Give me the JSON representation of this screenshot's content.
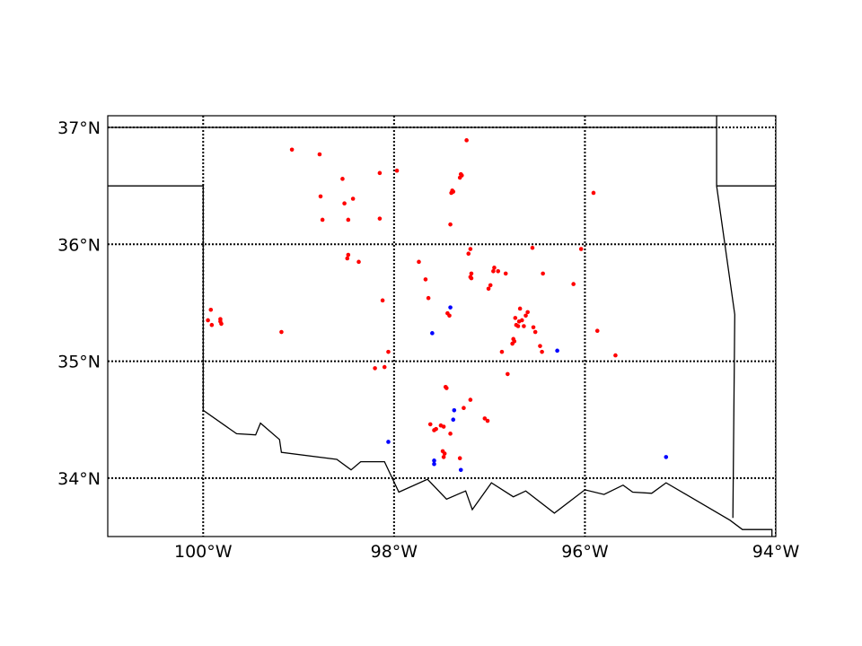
{
  "map": {
    "projection": "lat-lon",
    "lon_range": [
      -101,
      -94
    ],
    "lat_range": [
      33.5,
      37.1
    ],
    "gridlines": "dotted",
    "lon_ticks": [
      {
        "value": -100,
        "label": "100°W"
      },
      {
        "value": -98,
        "label": "98°W"
      },
      {
        "value": -96,
        "label": "96°W"
      },
      {
        "value": -94,
        "label": "94°W"
      }
    ],
    "lat_ticks": [
      {
        "value": 37,
        "label": "37°N"
      },
      {
        "value": 36,
        "label": "36°N"
      },
      {
        "value": 35,
        "label": "35°N"
      },
      {
        "value": 34,
        "label": "34°N"
      }
    ],
    "colors": {
      "boundary": "#000000",
      "red_points": "#ff0000",
      "blue_points": "#0000ff"
    },
    "boundaries": [
      [
        [
          -101,
          36.5
        ],
        [
          -100,
          36.5
        ],
        [
          -100,
          34.58
        ],
        [
          -99.65,
          34.38
        ],
        [
          -99.45,
          34.37
        ],
        [
          -99.4,
          34.47
        ],
        [
          -99.2,
          34.33
        ],
        [
          -99.18,
          34.22
        ],
        [
          -98.6,
          34.16
        ],
        [
          -98.45,
          34.07
        ],
        [
          -98.35,
          34.14
        ],
        [
          -98.1,
          34.14
        ],
        [
          -97.95,
          33.88
        ],
        [
          -97.65,
          33.99
        ],
        [
          -97.45,
          33.82
        ],
        [
          -97.25,
          33.89
        ],
        [
          -97.18,
          33.73
        ],
        [
          -96.98,
          33.96
        ],
        [
          -96.75,
          33.84
        ],
        [
          -96.62,
          33.89
        ],
        [
          -96.32,
          33.7
        ],
        [
          -96.0,
          33.9
        ],
        [
          -95.8,
          33.86
        ],
        [
          -95.6,
          33.94
        ],
        [
          -95.5,
          33.88
        ],
        [
          -95.3,
          33.87
        ],
        [
          -95.15,
          33.96
        ],
        [
          -94.48,
          33.64
        ],
        [
          -94.35,
          33.56
        ],
        [
          -94.04,
          33.56
        ],
        [
          -94.04,
          33.5
        ]
      ],
      [
        [
          -94.62,
          37.12
        ],
        [
          -94.62,
          36.5
        ],
        [
          -94.43,
          35.4
        ],
        [
          -94.45,
          33.66
        ]
      ],
      [
        [
          -101,
          37
        ],
        [
          -94.62,
          37
        ]
      ],
      [
        [
          -94.62,
          36.5
        ],
        [
          -94,
          36.5
        ]
      ]
    ],
    "points_red": [
      [
        -99.07,
        36.81
      ],
      [
        -98.78,
        36.77
      ],
      [
        -98.54,
        36.56
      ],
      [
        -98.15,
        36.61
      ],
      [
        -97.97,
        36.63
      ],
      [
        -97.24,
        36.89
      ],
      [
        -97.3,
        36.6
      ],
      [
        -97.31,
        36.57
      ],
      [
        -97.29,
        36.59
      ],
      [
        -97.39,
        36.46
      ],
      [
        -97.4,
        36.44
      ],
      [
        -97.38,
        36.45
      ],
      [
        -98.77,
        36.41
      ],
      [
        -98.52,
        36.35
      ],
      [
        -98.43,
        36.39
      ],
      [
        -98.75,
        36.21
      ],
      [
        -98.48,
        36.21
      ],
      [
        -98.15,
        36.22
      ],
      [
        -97.41,
        36.17
      ],
      [
        -95.91,
        36.44
      ],
      [
        -99.92,
        35.44
      ],
      [
        -99.95,
        35.35
      ],
      [
        -99.91,
        35.31
      ],
      [
        -99.82,
        35.36
      ],
      [
        -99.81,
        35.32
      ],
      [
        -99.82,
        35.34
      ],
      [
        -99.18,
        35.25
      ],
      [
        -98.48,
        35.91
      ],
      [
        -98.49,
        35.88
      ],
      [
        -98.37,
        35.85
      ],
      [
        -97.2,
        35.96
      ],
      [
        -97.22,
        35.92
      ],
      [
        -97.19,
        35.75
      ],
      [
        -97.19,
        35.71
      ],
      [
        -97.2,
        35.72
      ],
      [
        -97.74,
        35.85
      ],
      [
        -97.67,
        35.7
      ],
      [
        -97.64,
        35.54
      ],
      [
        -97.01,
        35.62
      ],
      [
        -96.99,
        35.65
      ],
      [
        -96.95,
        35.8
      ],
      [
        -96.96,
        35.77
      ],
      [
        -96.91,
        35.77
      ],
      [
        -96.83,
        35.75
      ],
      [
        -96.55,
        35.97
      ],
      [
        -96.04,
        35.96
      ],
      [
        -96.44,
        35.75
      ],
      [
        -96.12,
        35.66
      ],
      [
        -97.44,
        35.41
      ],
      [
        -97.42,
        35.39
      ],
      [
        -98.12,
        35.52
      ],
      [
        -96.68,
        35.45
      ],
      [
        -96.6,
        35.42
      ],
      [
        -96.62,
        35.39
      ],
      [
        -96.73,
        35.37
      ],
      [
        -96.66,
        35.35
      ],
      [
        -96.69,
        35.34
      ],
      [
        -96.72,
        35.31
      ],
      [
        -96.7,
        35.3
      ],
      [
        -96.64,
        35.3
      ],
      [
        -96.54,
        35.29
      ],
      [
        -96.52,
        35.25
      ],
      [
        -96.75,
        35.19
      ],
      [
        -96.74,
        35.17
      ],
      [
        -96.76,
        35.15
      ],
      [
        -96.47,
        35.13
      ],
      [
        -96.45,
        35.08
      ],
      [
        -96.87,
        35.08
      ],
      [
        -95.87,
        35.26
      ],
      [
        -95.68,
        35.05
      ],
      [
        -98.06,
        35.08
      ],
      [
        -98.2,
        34.94
      ],
      [
        -98.1,
        34.95
      ],
      [
        -96.81,
        34.89
      ],
      [
        -97.46,
        34.78
      ],
      [
        -97.45,
        34.77
      ],
      [
        -97.2,
        34.67
      ],
      [
        -97.27,
        34.6
      ],
      [
        -97.05,
        34.51
      ],
      [
        -97.02,
        34.49
      ],
      [
        -97.62,
        34.46
      ],
      [
        -97.56,
        34.42
      ],
      [
        -97.51,
        34.45
      ],
      [
        -97.48,
        34.44
      ],
      [
        -97.58,
        34.41
      ],
      [
        -97.41,
        34.38
      ],
      [
        -97.49,
        34.23
      ],
      [
        -97.47,
        34.21
      ],
      [
        -97.48,
        34.18
      ],
      [
        -97.31,
        34.17
      ]
    ],
    "points_blue": [
      [
        -97.41,
        35.46
      ],
      [
        -97.6,
        35.24
      ],
      [
        -96.29,
        35.09
      ],
      [
        -97.37,
        34.58
      ],
      [
        -97.38,
        34.5
      ],
      [
        -98.06,
        34.31
      ],
      [
        -97.58,
        34.15
      ],
      [
        -97.58,
        34.12
      ],
      [
        -97.3,
        34.07
      ],
      [
        -95.15,
        34.18
      ]
    ]
  }
}
